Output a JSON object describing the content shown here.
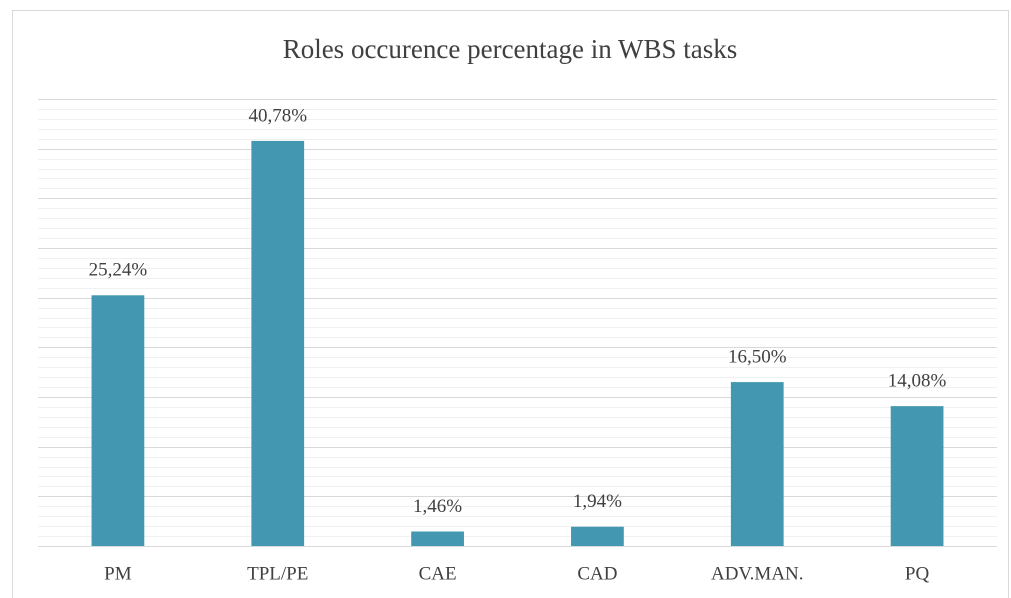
{
  "chart_data": {
    "type": "bar",
    "title": "Roles occurence percentage in WBS tasks",
    "categories": [
      "PM",
      "TPL/PE",
      "CAE",
      "CAD",
      "ADV.MAN.",
      "PQ"
    ],
    "values": [
      25.24,
      40.78,
      1.46,
      1.94,
      16.5,
      14.08
    ],
    "value_labels": [
      "25,24%",
      "40,78%",
      "1,46%",
      "1,94%",
      "16,50%",
      "14,08%"
    ],
    "color": "#4397b0",
    "ylim": [
      0,
      45
    ],
    "yticks": [
      0,
      5,
      10,
      15,
      20,
      25,
      30,
      35,
      40,
      45
    ],
    "minor_yticks": [
      1,
      2,
      3,
      4,
      6,
      7,
      8,
      9,
      11,
      12,
      13,
      14,
      16,
      17,
      18,
      19,
      21,
      22,
      23,
      24,
      26,
      27,
      28,
      29,
      31,
      32,
      33,
      34,
      36,
      37,
      38,
      39,
      41,
      42,
      43,
      44
    ],
    "grid": true
  }
}
